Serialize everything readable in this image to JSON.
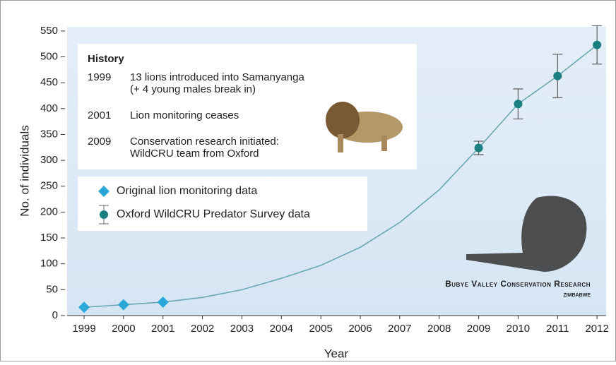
{
  "chart_data": {
    "type": "line",
    "x_label": "Year",
    "y_label": "No. of individuals",
    "x": [
      1999,
      2000,
      2001,
      2002,
      2003,
      2004,
      2005,
      2006,
      2007,
      2008,
      2009,
      2010,
      2011,
      2012
    ],
    "xlim": [
      1998.57,
      2012.23
    ],
    "xticks": [
      1999,
      2000,
      2001,
      2002,
      2003,
      2004,
      2005,
      2006,
      2007,
      2008,
      2009,
      2010,
      2011,
      2012
    ],
    "ylim": [
      0,
      558
    ],
    "yticks": [
      0,
      50,
      100,
      150,
      200,
      250,
      300,
      350,
      400,
      450,
      500,
      550
    ],
    "grid": false,
    "series": [
      {
        "color": "#6aa7b2",
        "values": [
          16,
          21,
          26,
          35,
          50,
          72,
          97,
          132,
          180,
          243,
          324,
          409,
          463,
          523
        ]
      },
      {
        "name": "Original lion monitoring data",
        "color": "#2aa9d8",
        "marker": "diamond",
        "values": [
          16,
          21,
          26,
          null,
          null,
          null,
          null,
          null,
          null,
          null,
          null,
          null,
          null,
          null
        ]
      },
      {
        "name": "Oxford WildCRU Predator Survey data",
        "color": "#1a7f80",
        "marker": "circle",
        "values": [
          null,
          null,
          null,
          null,
          null,
          null,
          null,
          null,
          null,
          null,
          324,
          409,
          463,
          523
        ],
        "errors": [
          null,
          null,
          null,
          null,
          null,
          null,
          null,
          null,
          null,
          null,
          13,
          29,
          42,
          37
        ]
      }
    ],
    "history": {
      "title": "History",
      "entries": [
        {
          "year": "1999",
          "lines": [
            "13 lions introduced into Samanyanga",
            "(+ 4 young males break in)"
          ]
        },
        {
          "year": "2001",
          "lines": [
            "Lion monitoring ceases"
          ]
        },
        {
          "year": "2009",
          "lines": [
            "Conservation research initiated:",
            "WildCRU team from Oxford"
          ]
        }
      ]
    },
    "logo": {
      "name": "Bubye Valley Conservation Research",
      "place": "Zimbabwe"
    }
  }
}
